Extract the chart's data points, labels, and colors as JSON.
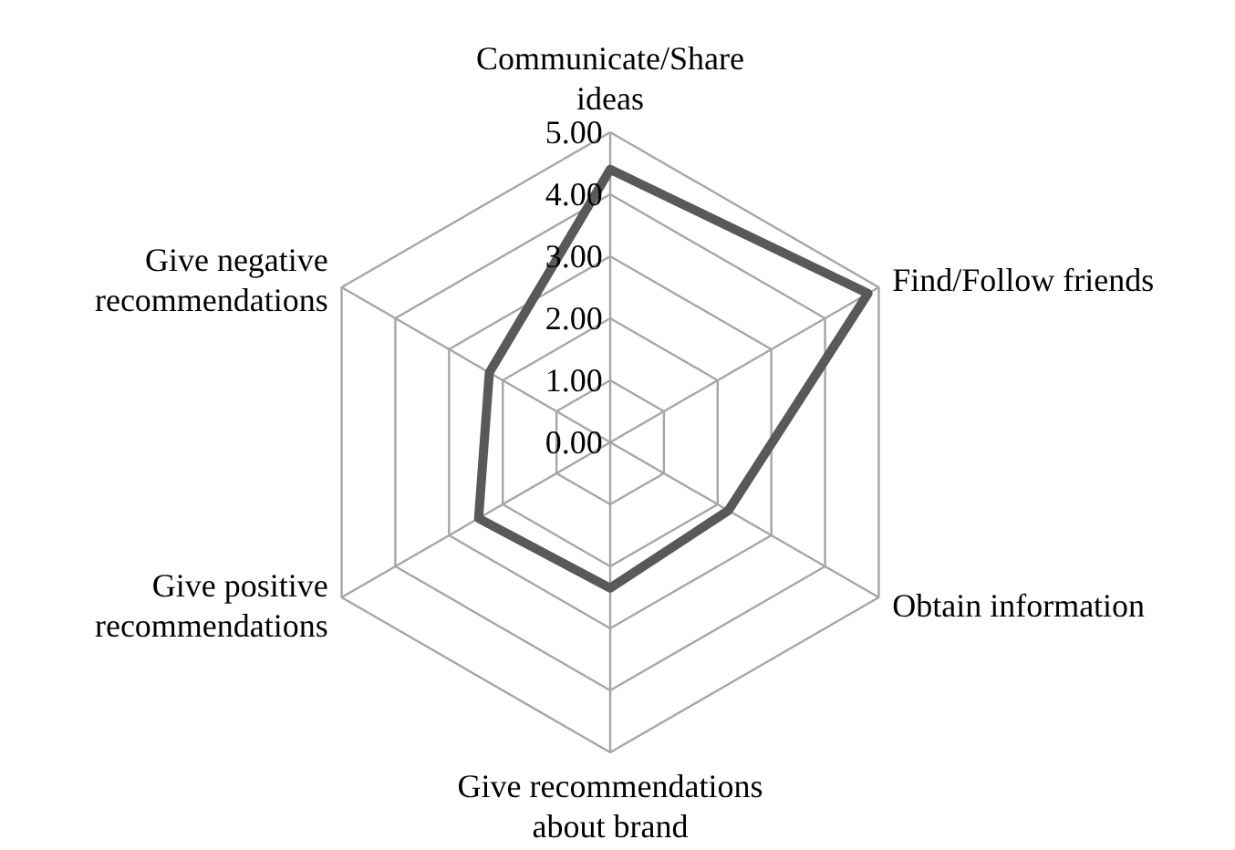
{
  "chart_data": {
    "type": "radar",
    "categories": [
      "Communicate/Share ideas",
      "Find/Follow friends",
      "Obtain information",
      "Give recommendations about brand",
      "Give positive recommendations",
      "Give negative recommendations"
    ],
    "series": [
      {
        "color": "#595959",
        "values": [
          4.4,
          4.8,
          2.2,
          2.35,
          2.45,
          2.25
        ]
      }
    ],
    "ylim": [
      0,
      5
    ],
    "yticks": [
      {
        "value": 0,
        "label": "0.00"
      },
      {
        "value": 1,
        "label": "1.00"
      },
      {
        "value": 2,
        "label": "2.00"
      },
      {
        "value": 3,
        "label": "3.00"
      },
      {
        "value": 4,
        "label": "4.00"
      },
      {
        "value": 5,
        "label": "5.00"
      }
    ],
    "grid": true
  }
}
